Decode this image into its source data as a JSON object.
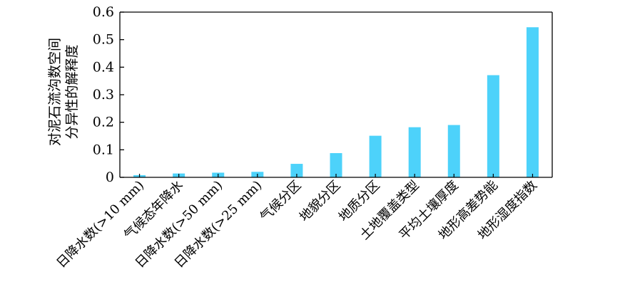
{
  "chart_data": {
    "type": "bar",
    "title": "",
    "xlabel": "",
    "ylabel_lines": [
      "对泥石流沟数空间",
      "分异性的解释度"
    ],
    "categories": [
      "日降水数(>10 mm)",
      "气候态年降水",
      "日降水数(>50 mm)",
      "日降水数(>25 mm)",
      "气候分区",
      "地貌分区",
      "地质分区",
      "土地覆盖类型",
      "平均土壤厚度",
      "地形高差势能",
      "地形湿度指数"
    ],
    "values": [
      0.008,
      0.014,
      0.017,
      0.02,
      0.049,
      0.088,
      0.151,
      0.182,
      0.19,
      0.371,
      0.545
    ],
    "ylim": [
      0,
      0.6
    ],
    "yticks": [
      0,
      0.1,
      0.2,
      0.3,
      0.4,
      0.5,
      0.6
    ],
    "ytick_labels": [
      "0",
      "0.1",
      "0.2",
      "0.3",
      "0.4",
      "0.5",
      "0.6"
    ],
    "grid": false,
    "bar_color": "#4dd2fa"
  }
}
